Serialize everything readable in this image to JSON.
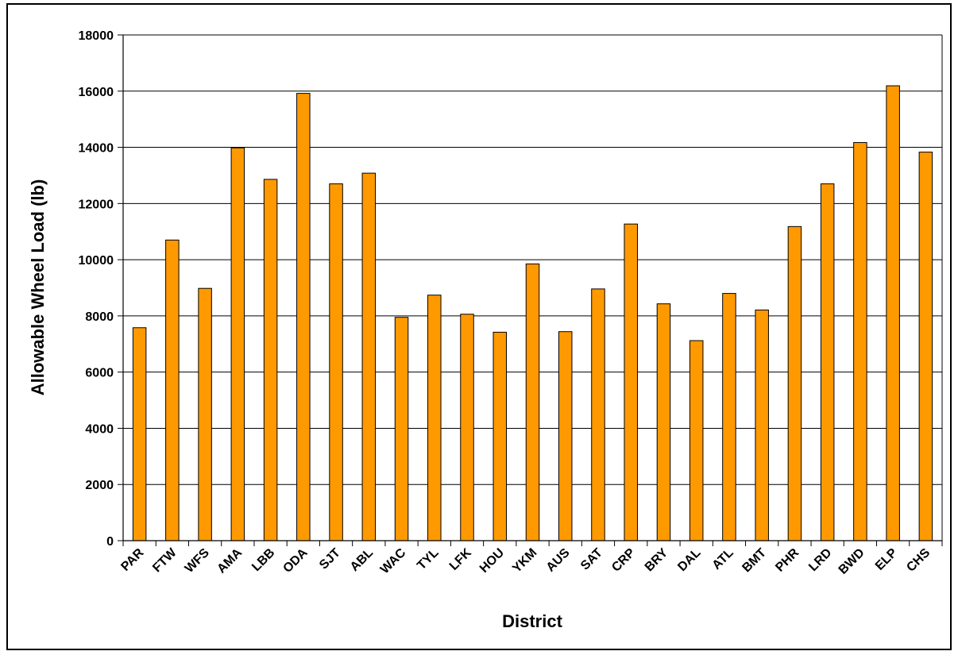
{
  "chart_data": {
    "type": "bar",
    "title": "",
    "xlabel": "District",
    "ylabel": "Allowable Wheel Load (lb)",
    "ylim": [
      0,
      18000
    ],
    "yticks": [
      0,
      2000,
      4000,
      6000,
      8000,
      10000,
      12000,
      14000,
      16000,
      18000
    ],
    "grid": true,
    "legend": "none",
    "bar_color": "#FF9900",
    "bar_edge_color": "#000000",
    "categories": [
      "PAR",
      "FTW",
      "WFS",
      "AMA",
      "LBB",
      "ODA",
      "SJT",
      "ABL",
      "WAC",
      "TYL",
      "LFK",
      "HOU",
      "YKM",
      "AUS",
      "SAT",
      "CRP",
      "BRY",
      "DAL",
      "ATL",
      "BMT",
      "PHR",
      "LRD",
      "BWD",
      "ELP",
      "CHS"
    ],
    "values": [
      7580,
      10700,
      8980,
      13980,
      12860,
      15920,
      12700,
      13080,
      7950,
      8740,
      8060,
      7420,
      9850,
      7440,
      8960,
      11270,
      8430,
      7120,
      8800,
      8210,
      11180,
      12700,
      14170,
      16190,
      13830
    ]
  }
}
